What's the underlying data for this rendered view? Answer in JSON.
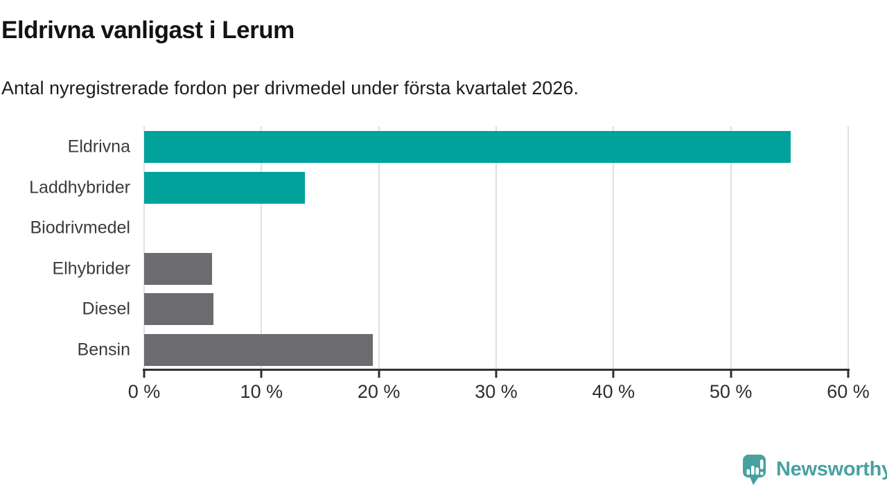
{
  "header": {
    "title": "Eldrivna vanligast i Lerum",
    "subtitle": "Antal nyregistrerade fordon per drivmedel under första kvartalet 2026."
  },
  "chart_data": {
    "type": "bar",
    "orientation": "horizontal",
    "title": "Eldrivna vanligast i Lerum",
    "subtitle": "Antal nyregistrerade fordon per drivmedel under första kvartalet 2026.",
    "categories": [
      "Eldrivna",
      "Laddhybrider",
      "Biodrivmedel",
      "Elhybrider",
      "Diesel",
      "Bensin"
    ],
    "values": [
      55.1,
      13.7,
      0,
      5.8,
      5.9,
      19.5
    ],
    "unit": "%",
    "xlim": [
      0,
      60
    ],
    "x_tick_values": [
      0,
      10,
      20,
      30,
      40,
      50,
      60
    ],
    "x_tick_labels": [
      "0 %",
      "10 %",
      "20 %",
      "30 %",
      "40 %",
      "50 %",
      "60 %"
    ],
    "bar_colors": [
      "#00a29b",
      "#00a29b",
      "#00a29b",
      "#6b6b70",
      "#6b6b70",
      "#6b6b70"
    ],
    "grid": "vertical",
    "legend": "none",
    "ylabel": "",
    "xlabel": ""
  },
  "colors": {
    "accent_teal": "#00a29b",
    "neutral_gray": "#6b6b70",
    "brand_teal": "#47a1a1",
    "gridline": "#e0e0e0",
    "axis": "#2f2f2f"
  },
  "footer": {
    "brand": "Newsworthy"
  }
}
